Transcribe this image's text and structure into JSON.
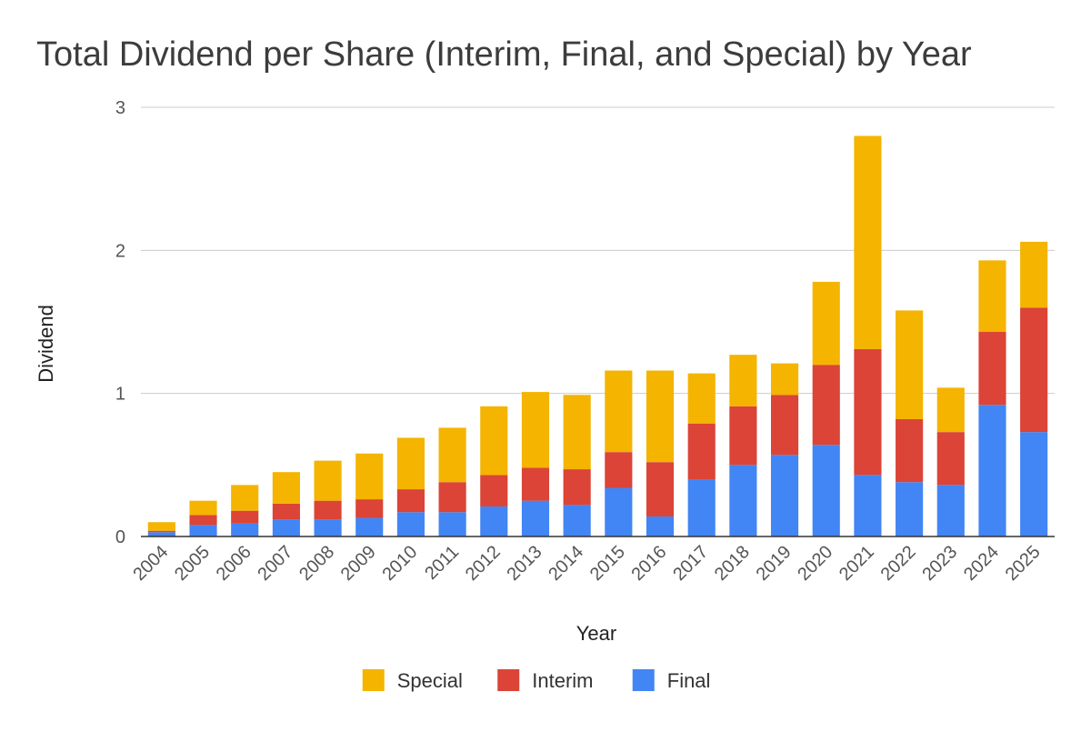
{
  "chart_data": {
    "type": "bar",
    "stacked": true,
    "title": "Total Dividend per Share (Interim, Final, and Special) by Year",
    "xlabel": "Year",
    "ylabel": "Dividend",
    "ylim": [
      0,
      3
    ],
    "yticks": [
      "0",
      "1",
      "2",
      "3"
    ],
    "categories": [
      "2004",
      "2005",
      "2006",
      "2007",
      "2008",
      "2009",
      "2010",
      "2011",
      "2012",
      "2013",
      "2014",
      "2015",
      "2016",
      "2017",
      "2018",
      "2019",
      "2020",
      "2021",
      "2022",
      "2023",
      "2024",
      "2025"
    ],
    "series": [
      {
        "name": "Final",
        "color": "#4285f4",
        "values": [
          0.03,
          0.08,
          0.09,
          0.12,
          0.12,
          0.13,
          0.17,
          0.17,
          0.21,
          0.25,
          0.22,
          0.34,
          0.14,
          0.4,
          0.5,
          0.57,
          0.64,
          0.43,
          0.38,
          0.36,
          0.92,
          0.73
        ]
      },
      {
        "name": "Interim",
        "color": "#db4437",
        "values": [
          0.01,
          0.07,
          0.09,
          0.11,
          0.13,
          0.13,
          0.16,
          0.21,
          0.22,
          0.23,
          0.25,
          0.25,
          0.38,
          0.39,
          0.41,
          0.42,
          0.56,
          0.88,
          0.44,
          0.37,
          0.51,
          0.87
        ]
      },
      {
        "name": "Special",
        "color": "#f4b400",
        "values": [
          0.06,
          0.1,
          0.18,
          0.22,
          0.28,
          0.32,
          0.36,
          0.38,
          0.48,
          0.53,
          0.52,
          0.57,
          0.64,
          0.35,
          0.36,
          0.22,
          0.58,
          1.49,
          0.76,
          0.31,
          0.5,
          0.46
        ]
      }
    ],
    "legend": [
      "Special",
      "Interim",
      "Final"
    ],
    "legend_position": "bottom",
    "grid": true
  }
}
